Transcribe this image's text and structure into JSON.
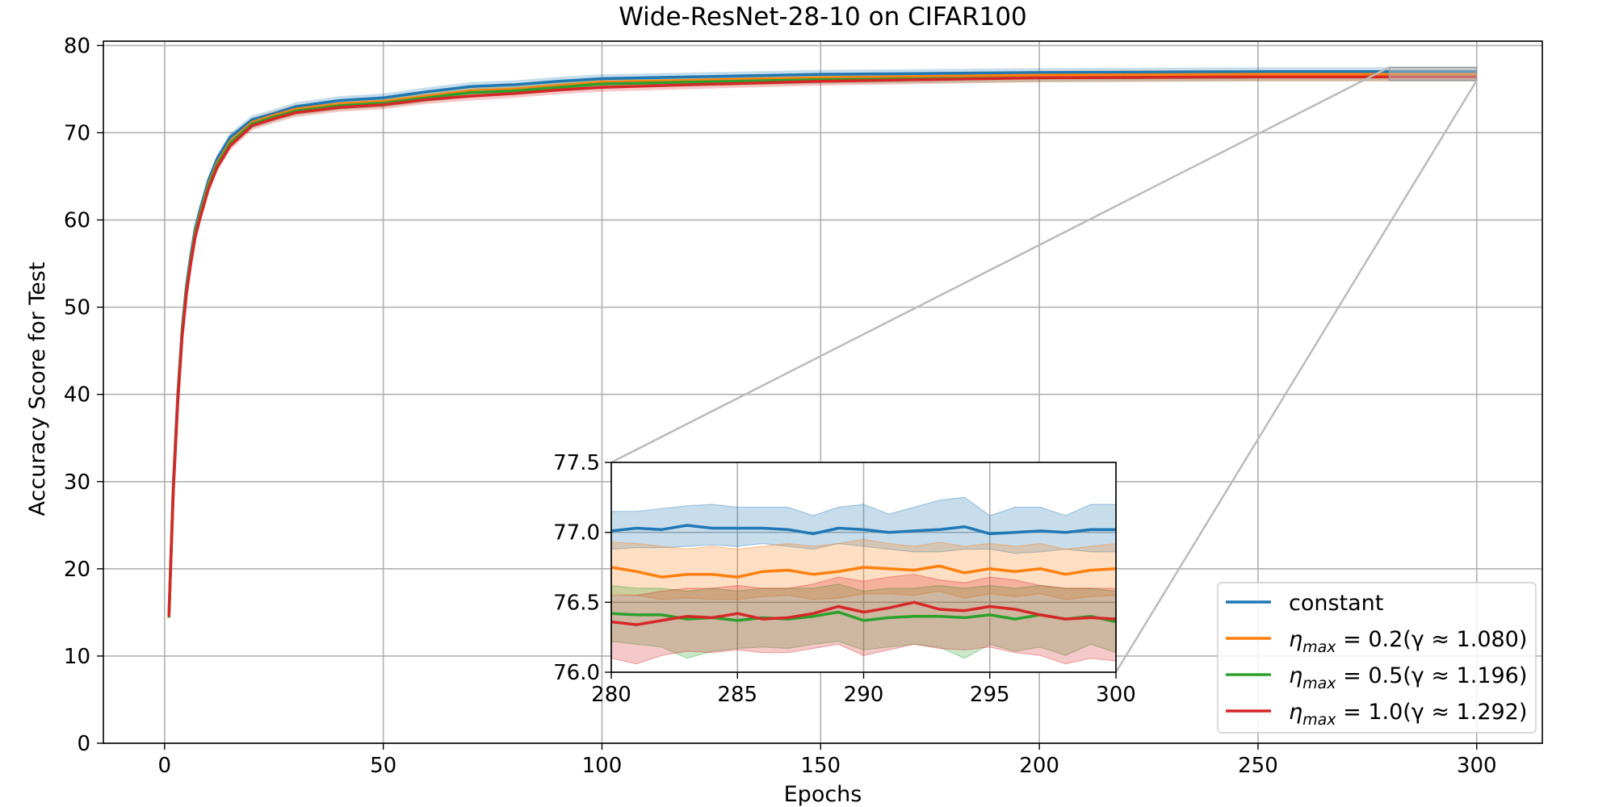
{
  "chart_data": {
    "type": "line",
    "title": "Wide-ResNet-28-10 on CIFAR100",
    "xlabel": "Epochs",
    "ylabel": "Accuracy Score for Test",
    "xlim": [
      -14,
      315
    ],
    "ylim": [
      0,
      80.5
    ],
    "xticks": [
      0,
      50,
      100,
      150,
      200,
      250,
      300
    ],
    "yticks": [
      0,
      10,
      20,
      30,
      40,
      50,
      60,
      70,
      80
    ],
    "grid": true,
    "legend_position": "lower-right",
    "series": [
      {
        "key": "constant",
        "label_text": "constant",
        "color": "#1f77b4",
        "x": [
          1,
          2,
          3,
          4,
          5,
          6,
          7,
          8,
          10,
          12,
          15,
          20,
          25,
          30,
          40,
          50,
          60,
          70,
          80,
          90,
          100,
          120,
          150,
          200,
          250,
          300
        ],
        "y": [
          14.8,
          30,
          40,
          47.5,
          52.5,
          56,
          59,
          61,
          64.5,
          67,
          69.5,
          71.5,
          72.2,
          73.0,
          73.7,
          74.0,
          74.7,
          75.3,
          75.5,
          75.9,
          76.2,
          76.4,
          76.7,
          76.9,
          77.0,
          77.0
        ]
      },
      {
        "key": "eta-0.2",
        "legend_prefix": "η",
        "legend_sub": "max",
        "legend_rest": " = 0.2(γ ≈ 1.080)",
        "color": "#ff7f0e",
        "x": [
          1,
          2,
          3,
          4,
          5,
          6,
          7,
          8,
          10,
          12,
          15,
          20,
          25,
          30,
          40,
          50,
          60,
          70,
          80,
          90,
          100,
          120,
          150,
          200,
          250,
          300
        ],
        "y": [
          14.6,
          29.5,
          39.5,
          47,
          52,
          55.5,
          58.5,
          60.5,
          64,
          66.5,
          69,
          71.2,
          72,
          72.7,
          73.3,
          73.6,
          74.2,
          74.8,
          75.0,
          75.4,
          75.8,
          76.0,
          76.3,
          76.6,
          76.7,
          76.7
        ]
      },
      {
        "key": "eta-0.5",
        "legend_prefix": "η",
        "legend_sub": "max",
        "legend_rest": " = 0.5(γ ≈ 1.196)",
        "color": "#2ca02c",
        "x": [
          1,
          2,
          3,
          4,
          5,
          6,
          7,
          8,
          10,
          12,
          15,
          20,
          25,
          30,
          40,
          50,
          60,
          70,
          80,
          90,
          100,
          120,
          150,
          200,
          250,
          300
        ],
        "y": [
          14.4,
          29.2,
          39.3,
          46.8,
          51.8,
          55.3,
          58.3,
          60.3,
          63.8,
          66.3,
          68.8,
          71.0,
          71.8,
          72.5,
          73.1,
          73.4,
          74.0,
          74.6,
          74.8,
          75.2,
          75.6,
          75.8,
          76.1,
          76.3,
          76.4,
          76.4
        ]
      },
      {
        "key": "eta-1.0",
        "legend_prefix": "η",
        "legend_sub": "max",
        "legend_rest": " = 1.0(γ ≈ 1.292)",
        "color": "#d62728",
        "x": [
          1,
          2,
          3,
          4,
          5,
          6,
          7,
          8,
          10,
          12,
          15,
          20,
          25,
          30,
          40,
          50,
          60,
          70,
          80,
          90,
          100,
          120,
          150,
          200,
          250,
          300
        ],
        "y": [
          14.5,
          29,
          39,
          46.5,
          51.5,
          55,
          58,
          60,
          63.5,
          66,
          68.5,
          70.8,
          71.6,
          72.3,
          72.9,
          73.2,
          73.8,
          74.2,
          74.5,
          74.9,
          75.2,
          75.5,
          75.9,
          76.3,
          76.4,
          76.4
        ]
      }
    ],
    "inset": {
      "xlim": [
        280,
        300
      ],
      "ylim": [
        76.0,
        77.5
      ],
      "xticks": [
        280,
        285,
        290,
        295,
        300
      ],
      "yticks": [
        "76.0",
        "76.5",
        "77.0",
        "77.5"
      ],
      "x": [
        280,
        281,
        282,
        283,
        284,
        285,
        286,
        287,
        288,
        289,
        290,
        291,
        292,
        293,
        294,
        295,
        296,
        297,
        298,
        299,
        300
      ],
      "series": [
        {
          "key": "constant",
          "color": "#1f77b4",
          "y": [
            77.01,
            77.03,
            77.02,
            77.05,
            77.03,
            77.03,
            77.03,
            77.02,
            76.99,
            77.03,
            77.02,
            77.0,
            77.01,
            77.02,
            77.04,
            76.99,
            77.0,
            77.01,
            77.0,
            77.02,
            77.02
          ],
          "upper": [
            77.15,
            77.15,
            77.17,
            77.19,
            77.2,
            77.18,
            77.18,
            77.18,
            77.12,
            77.18,
            77.2,
            77.13,
            77.18,
            77.23,
            77.25,
            77.12,
            77.18,
            77.18,
            77.12,
            77.2,
            77.2
          ],
          "lower": [
            76.88,
            76.89,
            76.89,
            76.9,
            76.91,
            76.9,
            76.92,
            76.9,
            76.88,
            76.92,
            76.9,
            76.88,
            76.86,
            76.86,
            76.88,
            76.88,
            76.85,
            76.86,
            76.88,
            76.86,
            76.86
          ]
        },
        {
          "key": "eta-0.2",
          "color": "#ff7f0e",
          "y": [
            76.75,
            76.72,
            76.68,
            76.7,
            76.7,
            76.68,
            76.72,
            76.73,
            76.7,
            76.72,
            76.75,
            76.74,
            76.73,
            76.76,
            76.71,
            76.74,
            76.72,
            76.74,
            76.7,
            76.73,
            76.74
          ],
          "upper": [
            76.93,
            76.92,
            76.9,
            76.88,
            76.9,
            76.88,
            76.9,
            76.92,
            76.9,
            76.92,
            76.95,
            76.92,
            76.9,
            76.93,
            76.9,
            76.92,
            76.9,
            76.92,
            76.88,
            76.9,
            76.92
          ],
          "lower": [
            76.56,
            76.55,
            76.52,
            76.53,
            76.52,
            76.52,
            76.54,
            76.55,
            76.52,
            76.53,
            76.56,
            76.56,
            76.55,
            76.58,
            76.53,
            76.56,
            76.54,
            76.56,
            76.52,
            76.54,
            76.55
          ]
        },
        {
          "key": "eta-0.5",
          "color": "#2ca02c",
          "y": [
            76.42,
            76.41,
            76.41,
            76.38,
            76.39,
            76.37,
            76.39,
            76.38,
            76.4,
            76.43,
            76.37,
            76.39,
            76.4,
            76.4,
            76.39,
            76.41,
            76.38,
            76.41,
            76.38,
            76.4,
            76.36
          ],
          "upper": [
            76.62,
            76.6,
            76.6,
            76.58,
            76.6,
            76.58,
            76.6,
            76.6,
            76.6,
            76.63,
            76.58,
            76.6,
            76.6,
            76.62,
            76.6,
            76.62,
            76.6,
            76.62,
            76.6,
            76.6,
            76.58
          ],
          "lower": [
            76.22,
            76.2,
            76.18,
            76.1,
            76.15,
            76.17,
            76.18,
            76.17,
            76.2,
            76.22,
            76.16,
            76.18,
            76.2,
            76.18,
            76.1,
            76.2,
            76.15,
            76.18,
            76.12,
            76.2,
            76.14
          ]
        },
        {
          "key": "eta-1.0",
          "color": "#d62728",
          "y": [
            76.36,
            76.34,
            76.37,
            76.4,
            76.39,
            76.42,
            76.38,
            76.39,
            76.42,
            76.47,
            76.43,
            76.46,
            76.5,
            76.45,
            76.44,
            76.47,
            76.45,
            76.41,
            76.38,
            76.39,
            76.38
          ],
          "upper": [
            76.55,
            76.55,
            76.58,
            76.6,
            76.6,
            76.62,
            76.6,
            76.6,
            76.63,
            76.68,
            76.65,
            76.68,
            76.7,
            76.66,
            76.64,
            76.68,
            76.66,
            76.62,
            76.6,
            76.6,
            76.6
          ],
          "lower": [
            76.1,
            76.06,
            76.12,
            76.15,
            76.14,
            76.16,
            76.14,
            76.14,
            76.17,
            76.2,
            76.12,
            76.16,
            76.2,
            76.17,
            76.16,
            76.18,
            76.14,
            76.12,
            76.06,
            76.1,
            76.08
          ]
        }
      ]
    }
  }
}
